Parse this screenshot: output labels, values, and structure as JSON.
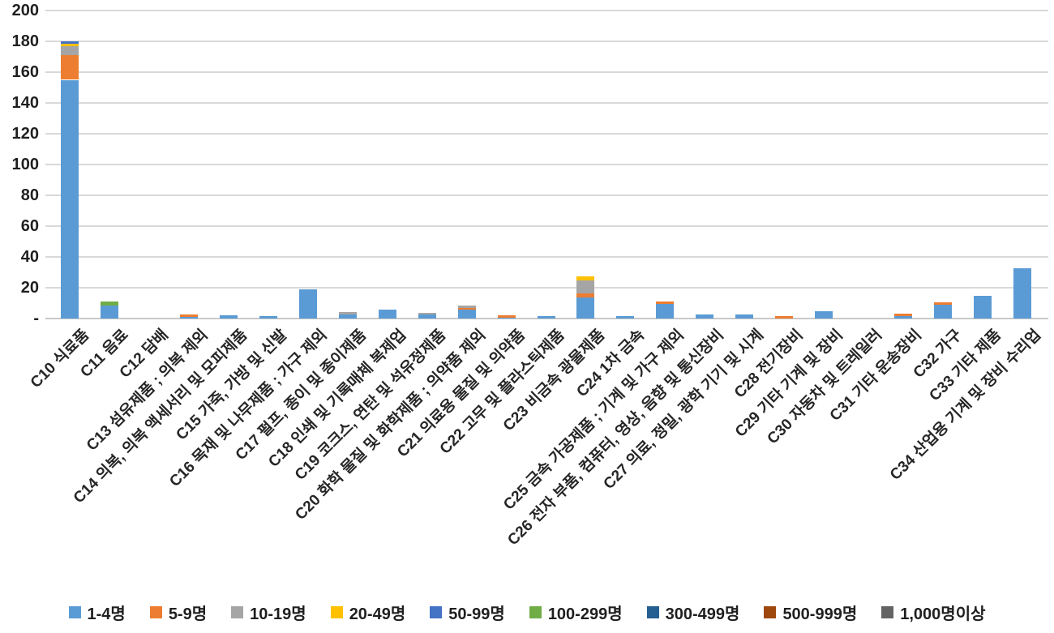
{
  "chart_data": {
    "type": "bar",
    "subtype": "stacked-vertical",
    "title": "",
    "xlabel": "",
    "ylabel": "",
    "ylim": [
      0,
      200
    ],
    "ytick_step": 20,
    "ytick_labels": [
      "-",
      "20",
      "40",
      "60",
      "80",
      "100",
      "120",
      "140",
      "160",
      "180",
      "200"
    ],
    "grid": true,
    "gridline_color": "#d9d9d9",
    "legend_position": "bottom",
    "categories": [
      "C10 식료품",
      "C11 음료",
      "C12 담배",
      "C13 섬유제품 ; 의복 제외",
      "C14 의복, 의복 액세서리 및 모피제품",
      "C15 가죽, 가방 및 신발",
      "C16 목재 및 나무제품 ; 가구 제외",
      "C17 펄프, 종이 및 종이제품",
      "C18 인쇄 및 기록매체 복제업",
      "C19 코크스, 연탄 및 석유정제품",
      "C20 화학 물질 및 화학제품 ; 의약품 제외",
      "C21 의료용 물질 및 의약품",
      "C22 고무 및 플라스틱제품",
      "C23 비금속 광물제품",
      "C24 1차 금속",
      "C25 금속 가공제품 ; 기계 및 가구 제외",
      "C26 전자 부품, 컴퓨터, 영상, 음향 및 통신장비",
      "C27 의료, 정밀, 광학 기기 및 시계",
      "C28 전기장비",
      "C29 기타 기계 및 장비",
      "C30 자동차 및 트레일러",
      "C31 기타 운송장비",
      "C32 가구",
      "C33 기타 제품",
      "C34 산업용 기계 및 장비 수리업"
    ],
    "series": [
      {
        "name": "1-4명",
        "color": "#5b9bd5",
        "values": [
          155,
          8.5,
          0,
          1,
          2,
          1.5,
          19,
          2.5,
          6,
          2.5,
          6,
          0.5,
          1.5,
          13.5,
          1.5,
          9.5,
          2.5,
          2.5,
          0,
          5,
          0,
          1.5,
          9,
          15,
          32.5
        ]
      },
      {
        "name": "5-9명",
        "color": "#ed7d31",
        "values": [
          16,
          0,
          0,
          1.5,
          0,
          0,
          0,
          0,
          0,
          0,
          1,
          1.5,
          0,
          3,
          0,
          1.5,
          0,
          0,
          1.5,
          0,
          0,
          1.5,
          1.5,
          0,
          0
        ]
      },
      {
        "name": "10-19명",
        "color": "#a5a5a5",
        "values": [
          6,
          0,
          0,
          0,
          0,
          0,
          0,
          1.5,
          0,
          1,
          1.5,
          0,
          0,
          8.5,
          0,
          0,
          0,
          0,
          0,
          0,
          0,
          0,
          0,
          0,
          0
        ]
      },
      {
        "name": "20-49명",
        "color": "#ffc000",
        "values": [
          1.5,
          0,
          0,
          0,
          0,
          0,
          0,
          0,
          0,
          0,
          0,
          0,
          0,
          2.5,
          0,
          0,
          0,
          0,
          0,
          0,
          0,
          0,
          0,
          0,
          0
        ]
      },
      {
        "name": "50-99명",
        "color": "#4472c4",
        "values": [
          1.5,
          0,
          0,
          0,
          0,
          0,
          0,
          0,
          0,
          0,
          0,
          0,
          0,
          0,
          0,
          0,
          0,
          0,
          0,
          0,
          0,
          0,
          0,
          0,
          0
        ]
      },
      {
        "name": "100-299명",
        "color": "#70ad47",
        "values": [
          0,
          2.5,
          0,
          0,
          0,
          0,
          0,
          0,
          0,
          0,
          0,
          0,
          0,
          0,
          0,
          0,
          0,
          0,
          0,
          0,
          0,
          0,
          0,
          0,
          0
        ]
      },
      {
        "name": "300-499명",
        "color": "#255e91",
        "values": [
          0,
          0,
          0,
          0,
          0,
          0,
          0,
          0,
          0,
          0,
          0,
          0,
          0,
          0,
          0,
          0,
          0,
          0,
          0,
          0,
          0,
          0,
          0,
          0,
          0
        ]
      },
      {
        "name": "500-999명",
        "color": "#9e480e",
        "values": [
          0,
          0,
          0,
          0,
          0,
          0,
          0,
          0,
          0,
          0,
          0,
          0,
          0,
          0,
          0,
          0,
          0,
          0,
          0,
          0,
          0,
          0,
          0,
          0,
          0
        ]
      },
      {
        "name": "1,000명이상",
        "color": "#636363",
        "values": [
          0,
          0,
          0,
          0,
          0,
          0,
          0,
          0,
          0,
          0,
          0,
          0,
          0,
          0,
          0,
          0,
          0,
          0,
          0,
          0,
          0,
          0,
          0,
          0,
          0
        ]
      }
    ]
  }
}
